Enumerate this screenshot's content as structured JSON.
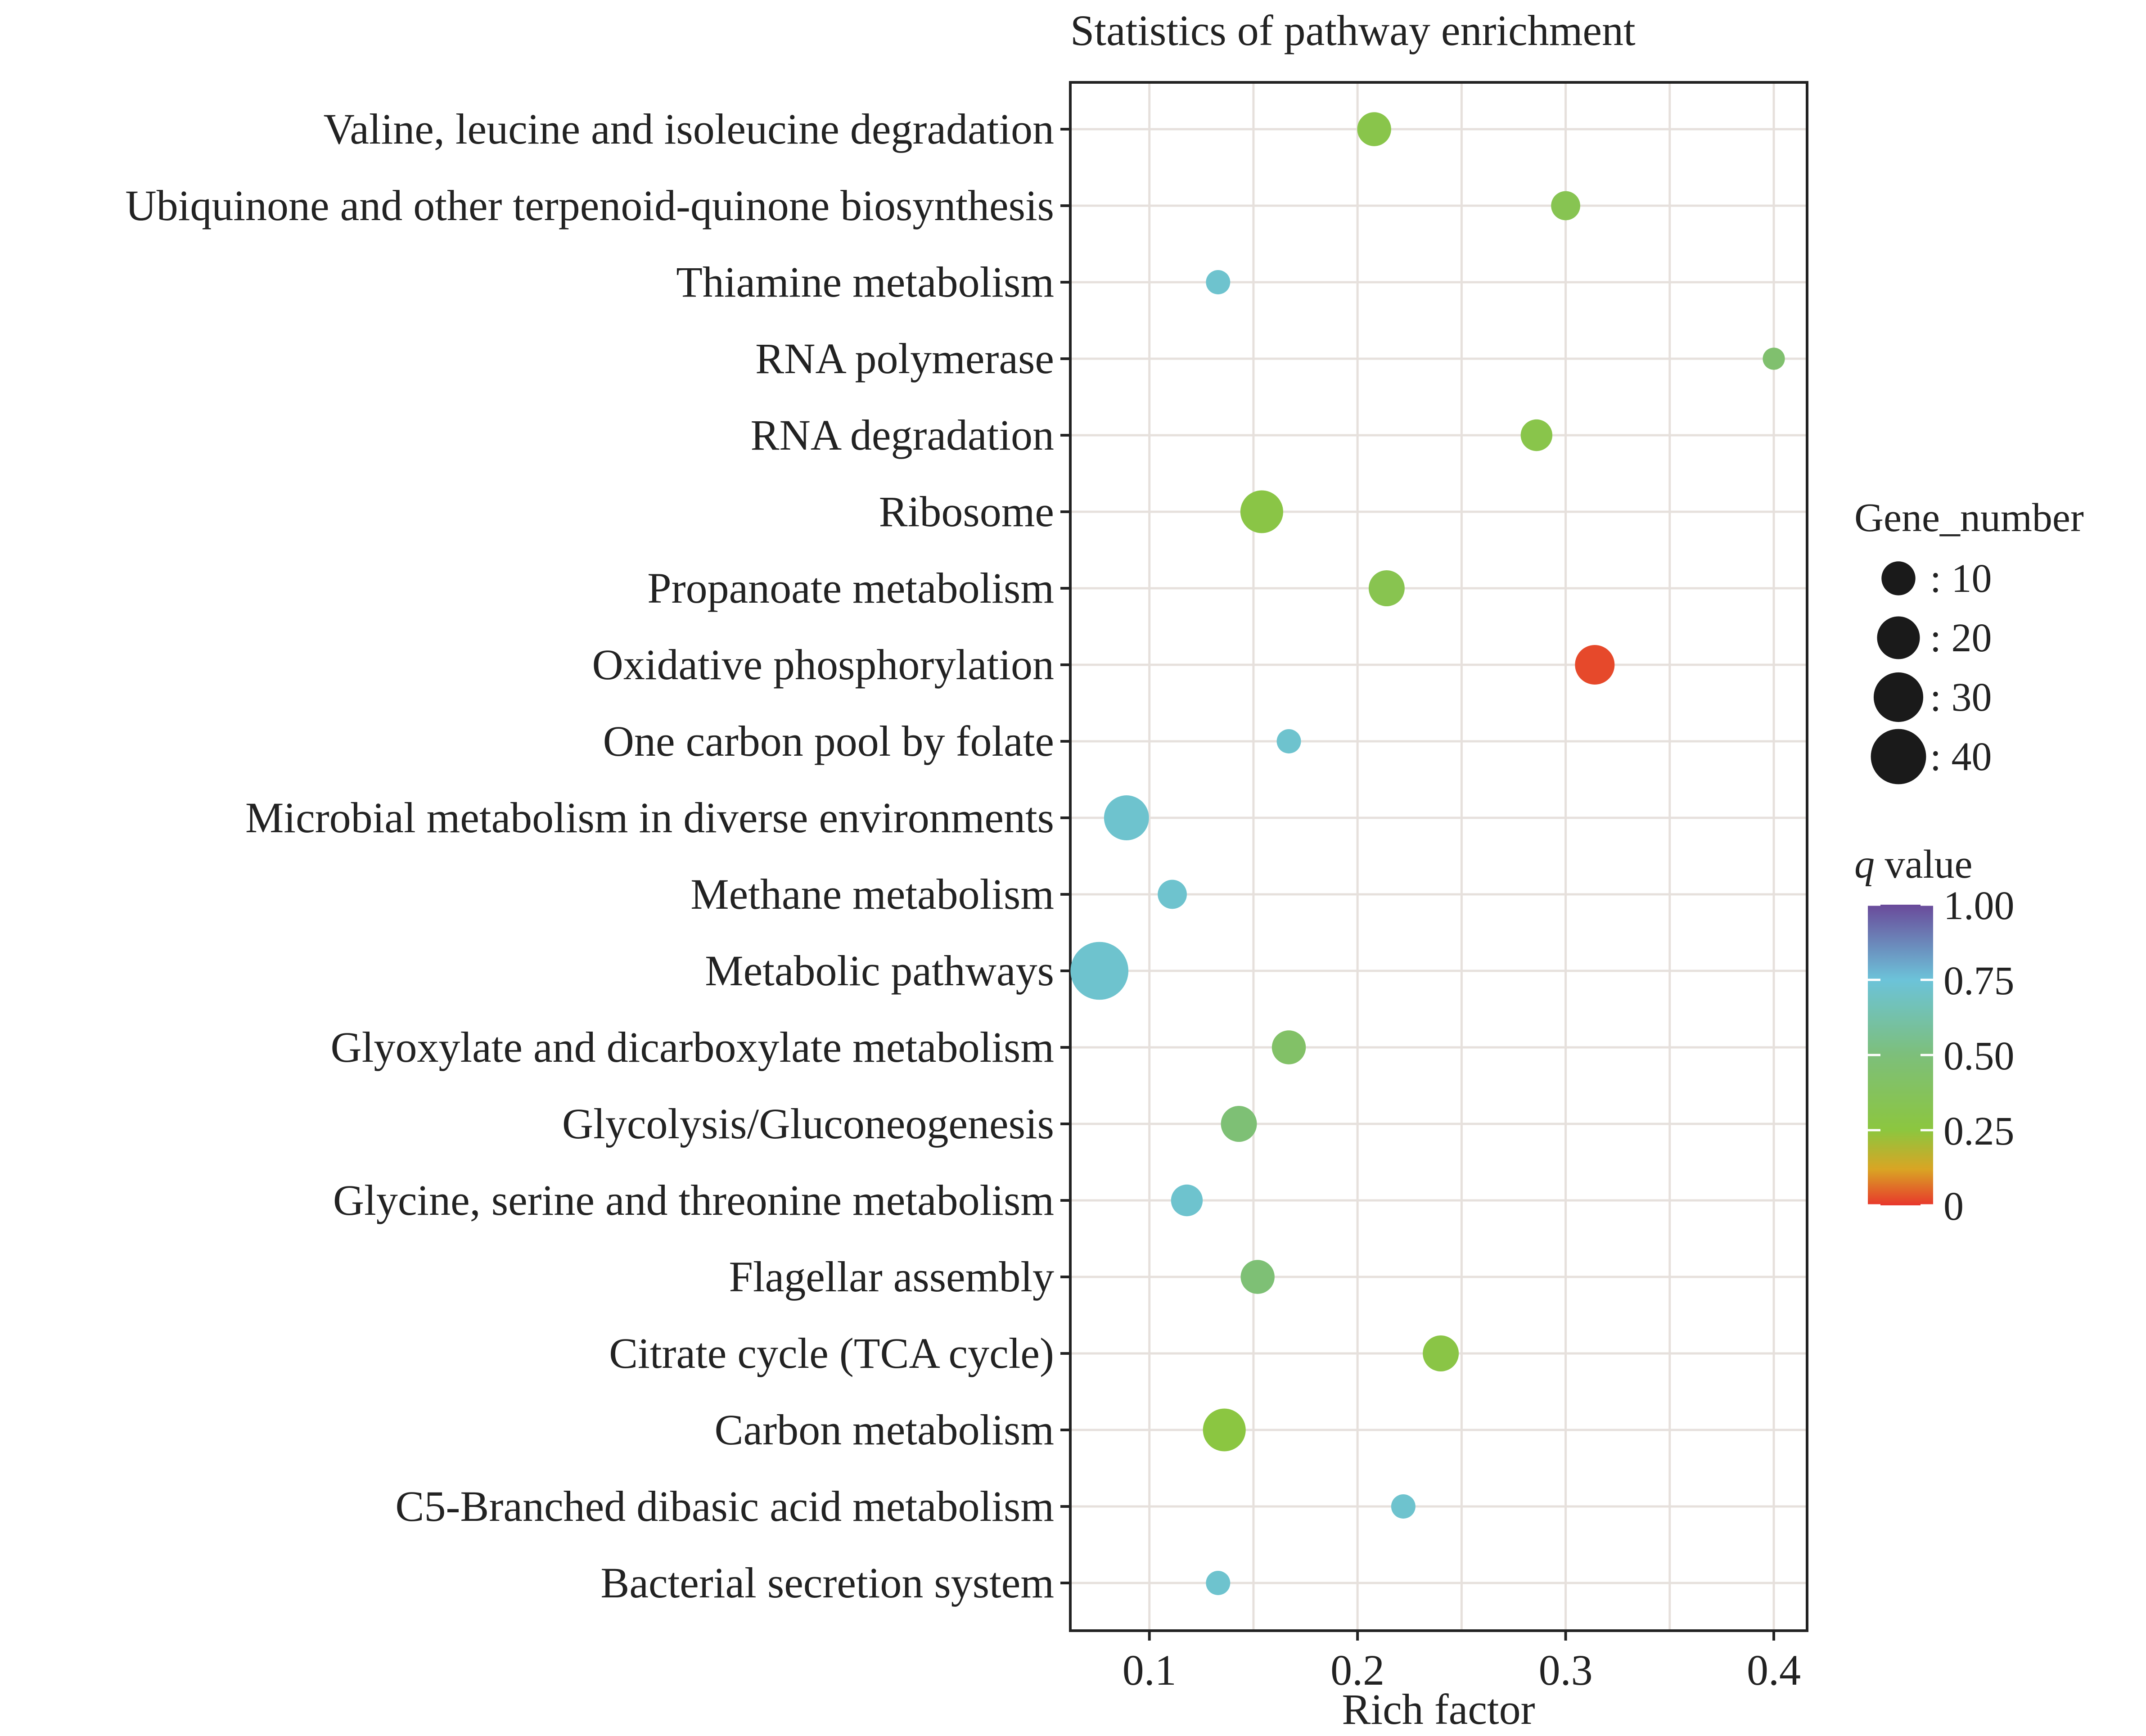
{
  "chart_data": {
    "type": "scatter",
    "title": "Statistics of pathway enrichment",
    "xlabel": "Rich factor",
    "ylabel": "",
    "xlim": [
      0.062,
      0.416
    ],
    "xticks": [
      0.1,
      0.2,
      0.3,
      0.4
    ],
    "xtick_labels": [
      "0.1",
      "0.2",
      "0.3",
      "0.4"
    ],
    "grid": true,
    "categories": [
      "Valine, leucine and isoleucine degradation",
      "Ubiquinone and other terpenoid-quinone biosynthesis",
      "Thiamine metabolism",
      "RNA polymerase",
      "RNA degradation",
      "Ribosome",
      "Propanoate metabolism",
      "Oxidative phosphorylation",
      "One carbon pool by folate",
      "Microbial metabolism in diverse environments",
      "Methane metabolism",
      "Metabolic pathways",
      "Glyoxylate and dicarboxylate metabolism",
      "Glycolysis/Gluconeogenesis",
      "Glycine, serine and threonine metabolism",
      "Flagellar assembly",
      "Citrate cycle (TCA cycle)",
      "Carbon metabolism",
      "C5-Branched dibasic acid metabolism",
      "Bacterial secretion system"
    ],
    "points": [
      {
        "pathway": "Valine, leucine and isoleucine degradation",
        "rich_factor": 0.208,
        "gene_number": 10,
        "q_value": 0.3
      },
      {
        "pathway": "Ubiquinone and other terpenoid-quinone biosynthesis",
        "rich_factor": 0.3,
        "gene_number": 6,
        "q_value": 0.33
      },
      {
        "pathway": "Thiamine metabolism",
        "rich_factor": 0.133,
        "gene_number": 3,
        "q_value": 0.72
      },
      {
        "pathway": "RNA polymerase",
        "rich_factor": 0.4,
        "gene_number": 2,
        "q_value": 0.45
      },
      {
        "pathway": "RNA degradation",
        "rich_factor": 0.286,
        "gene_number": 8,
        "q_value": 0.3
      },
      {
        "pathway": "Ribosome",
        "rich_factor": 0.154,
        "gene_number": 20,
        "q_value": 0.28
      },
      {
        "pathway": "Propanoate metabolism",
        "rich_factor": 0.214,
        "gene_number": 12,
        "q_value": 0.32
      },
      {
        "pathway": "Oxidative phosphorylation",
        "rich_factor": 0.314,
        "gene_number": 16,
        "q_value": 0.02
      },
      {
        "pathway": "One carbon pool by folate",
        "rich_factor": 0.167,
        "gene_number": 3,
        "q_value": 0.72
      },
      {
        "pathway": "Microbial metabolism in diverse environments",
        "rich_factor": 0.089,
        "gene_number": 23,
        "q_value": 0.72
      },
      {
        "pathway": "Methane metabolism",
        "rich_factor": 0.111,
        "gene_number": 6,
        "q_value": 0.72
      },
      {
        "pathway": "Metabolic pathways",
        "rich_factor": 0.076,
        "gene_number": 45,
        "q_value": 0.72
      },
      {
        "pathway": "Glyoxylate and dicarboxylate metabolism",
        "rich_factor": 0.167,
        "gene_number": 10,
        "q_value": 0.42
      },
      {
        "pathway": "Glycolysis/Gluconeogenesis",
        "rich_factor": 0.143,
        "gene_number": 12,
        "q_value": 0.48
      },
      {
        "pathway": "Glycine, serine and threonine metabolism",
        "rich_factor": 0.118,
        "gene_number": 8,
        "q_value": 0.72
      },
      {
        "pathway": "Flagellar assembly",
        "rich_factor": 0.152,
        "gene_number": 10,
        "q_value": 0.48
      },
      {
        "pathway": "Citrate cycle (TCA cycle)",
        "rich_factor": 0.24,
        "gene_number": 12,
        "q_value": 0.28
      },
      {
        "pathway": "Carbon metabolism",
        "rich_factor": 0.136,
        "gene_number": 20,
        "q_value": 0.26
      },
      {
        "pathway": "C5-Branched dibasic acid metabolism",
        "rich_factor": 0.222,
        "gene_number": 3,
        "q_value": 0.72
      },
      {
        "pathway": "Bacterial secretion system",
        "rich_factor": 0.133,
        "gene_number": 3,
        "q_value": 0.72
      }
    ],
    "size_legend": {
      "title": "Gene_number",
      "entries": [
        {
          "value": 10,
          "label": ": 10"
        },
        {
          "value": 20,
          "label": ": 20"
        },
        {
          "value": 30,
          "label": ": 30"
        },
        {
          "value": 40,
          "label": ": 40"
        }
      ]
    },
    "color_legend": {
      "title_italic": "q",
      "title_rest": " value",
      "range": [
        0,
        1
      ],
      "ticks": [
        {
          "value": 1.0,
          "label": "1.00"
        },
        {
          "value": 0.75,
          "label": "0.75"
        },
        {
          "value": 0.5,
          "label": "0.50"
        },
        {
          "value": 0.25,
          "label": "0.25"
        },
        {
          "value": 0,
          "label": "0"
        }
      ],
      "colors": [
        {
          "stop": 0.0,
          "color": "#e8372c"
        },
        {
          "stop": 0.12,
          "color": "#d9a524"
        },
        {
          "stop": 0.25,
          "color": "#8cc63f"
        },
        {
          "stop": 0.5,
          "color": "#7dbf7a"
        },
        {
          "stop": 0.75,
          "color": "#6cc3d9"
        },
        {
          "stop": 1.0,
          "color": "#6a4a9a"
        }
      ]
    },
    "colors": {
      "grid": "#e6e0dc",
      "axis": "#222222",
      "legend_dot": "#1a1a1a"
    }
  }
}
